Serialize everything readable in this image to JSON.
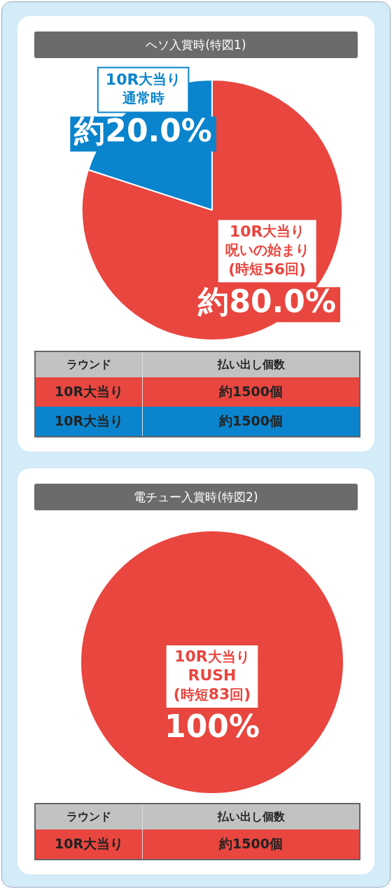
{
  "chart_data": [
    {
      "type": "pie",
      "title": "ヘソ入賞時(特図1)",
      "categories": [
        "10R大当り呪いの始まり(時短56回)",
        "10R大当り通常時"
      ],
      "values": [
        80,
        20
      ],
      "colors": [
        "#e8463f",
        "#0a84cc"
      ],
      "value_labels": [
        "約80.0%",
        "約20.0%"
      ],
      "annotations": [
        "ラウンド",
        "払い出し個数",
        "10R大当り",
        "約1500個",
        "10R大当り",
        "約1500個"
      ]
    },
    {
      "type": "pie",
      "title": "電チュー入賞時(特図2)",
      "categories": [
        "10R大当りRUSH(時短83回)"
      ],
      "values": [
        100
      ],
      "colors": [
        "#e8463f"
      ],
      "value_labels": [
        "100%"
      ],
      "annotations": [
        "ラウンド",
        "払い出し個数",
        "10R大当り",
        "約1500個"
      ]
    }
  ]
}
